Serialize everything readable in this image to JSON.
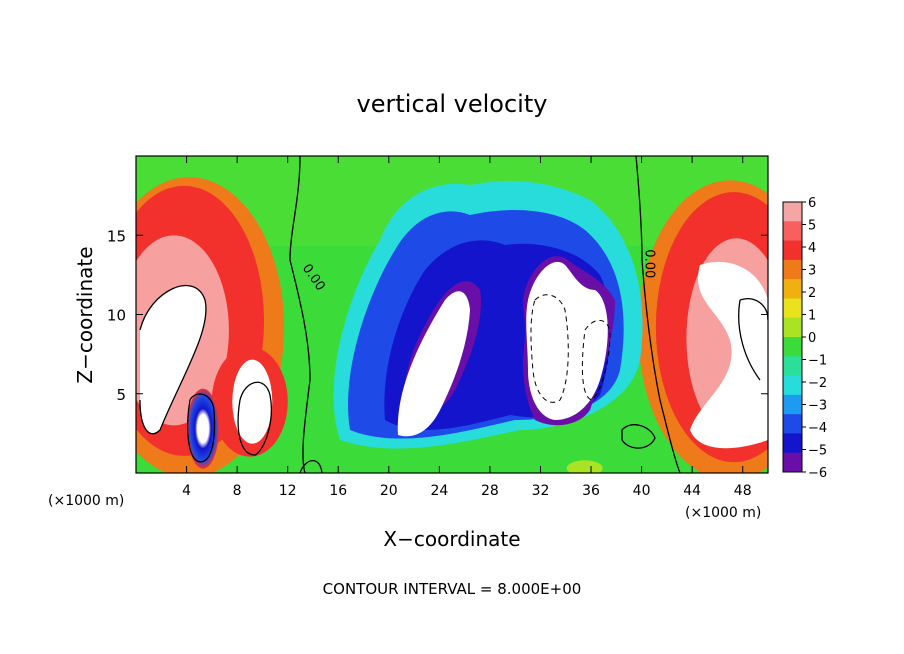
{
  "chart_data": {
    "type": "heatmap",
    "title": "vertical velocity",
    "xlabel": "X−coordinate",
    "ylabel": "Z−coordinate",
    "x_unit_left": "(×1000 m)",
    "x_unit_right": "(×1000 m)",
    "footer": "CONTOUR INTERVAL = 8.000E+00",
    "xlim": [
      0,
      50
    ],
    "ylim": [
      0,
      20
    ],
    "x_ticks": [
      4,
      8,
      12,
      16,
      20,
      24,
      28,
      32,
      36,
      40,
      44,
      48
    ],
    "y_ticks": [
      5,
      10,
      15
    ],
    "colorbar": {
      "min": -6,
      "max": 6,
      "ticks": [
        6,
        5,
        4,
        3,
        2,
        1,
        0,
        -1,
        -2,
        -3,
        -4,
        -5,
        -6
      ],
      "tick_labels": [
        "6",
        "5",
        "4",
        "3",
        "2",
        "1",
        "0",
        "−1",
        "−2",
        "−3",
        "−4",
        "−5",
        "−6"
      ],
      "colors": [
        "#f4a6a6",
        "#f7605e",
        "#f2302c",
        "#ee7a1a",
        "#f0b010",
        "#e9e21d",
        "#aae324",
        "#3bdb3a",
        "#2adf9a",
        "#28dcdc",
        "#1d9bf0",
        "#1e4be8",
        "#1414cc",
        "#6a0ea8"
      ]
    },
    "contour_labels": [
      {
        "text": "0.00",
        "x": 13.8,
        "y": 12.2
      },
      {
        "text": "0.00",
        "x": 40.3,
        "y": 13.2
      }
    ],
    "features": [
      {
        "kind": "updraft",
        "x_range": [
          0,
          10
        ],
        "z_range": [
          1,
          16
        ],
        "max": 6
      },
      {
        "kind": "updraft",
        "x_range": [
          42,
          50
        ],
        "z_range": [
          1,
          16
        ],
        "max": 6
      },
      {
        "kind": "downdraft",
        "x_range": [
          4.5,
          6.5
        ],
        "z_range": [
          0.5,
          5
        ],
        "min": -6
      },
      {
        "kind": "downdraft",
        "x_range": [
          15,
          40
        ],
        "z_range": [
          2,
          18
        ],
        "min": -6
      },
      {
        "kind": "near-zero",
        "x_range": [
          12,
          16
        ],
        "z_range": [
          0,
          20
        ],
        "value": 0
      },
      {
        "kind": "near-zero",
        "x_range": [
          39,
          42
        ],
        "z_range": [
          0,
          20
        ],
        "value": 0
      }
    ]
  }
}
